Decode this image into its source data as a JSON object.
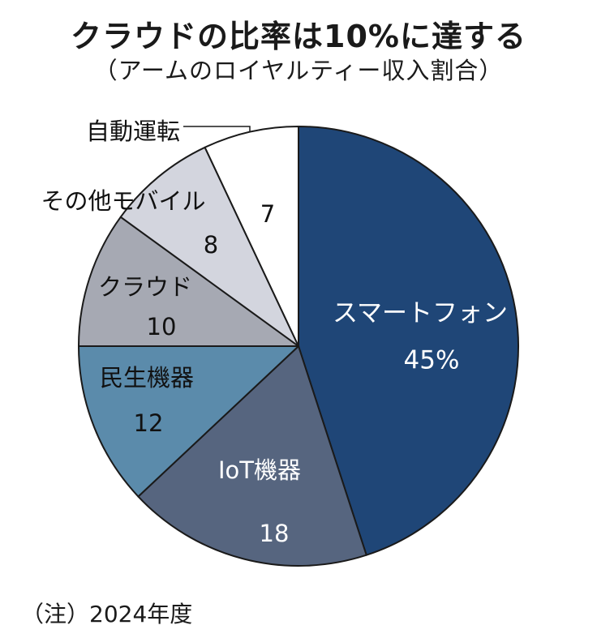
{
  "header": {
    "title": "クラウドの比率は10%に達する",
    "subtitle": "（アームのロイヤルティー収入割合）"
  },
  "footer": {
    "note": "（注）2024年度"
  },
  "chart_data": {
    "type": "pie",
    "unit": "%",
    "slices": [
      {
        "label": "スマートフォン",
        "value": 45,
        "display": "45%",
        "color": "#1f4677"
      },
      {
        "label": "IoT機器",
        "value": 18,
        "display": "18",
        "color": "#56657f"
      },
      {
        "label": "民生機器",
        "value": 12,
        "display": "12",
        "color": "#5b8bab"
      },
      {
        "label": "クラウド",
        "value": 10,
        "display": "10",
        "color": "#a6a9b3"
      },
      {
        "label": "その他モバイル",
        "value": 8,
        "display": "8",
        "color": "#d3d5de"
      },
      {
        "label": "自動運転",
        "value": 7,
        "display": "7",
        "color": "#ffffff"
      }
    ]
  }
}
